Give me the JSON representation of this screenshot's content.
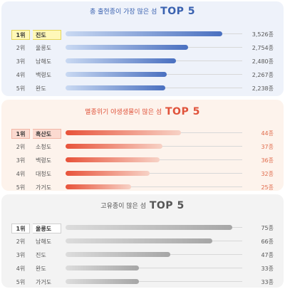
{
  "chart_data": [
    {
      "type": "bar",
      "title_prefix": "총 출현종이 가장 많은 섬",
      "title_emphasis": "TOP 5",
      "ranks": [
        "1위",
        "2위",
        "3위",
        "4위",
        "5위"
      ],
      "categories": [
        "진도",
        "울릉도",
        "남해도",
        "백령도",
        "완도"
      ],
      "values": [
        3526,
        2754,
        2480,
        2267,
        2238
      ],
      "value_labels": [
        "3,526종",
        "2,754종",
        "2,480종",
        "2,267종",
        "2,238종"
      ],
      "xlim": [
        0,
        4000
      ],
      "colors": {
        "bg": "#eef2fa",
        "bar_start": "#c9d9f2",
        "bar_end": "#4a70c0",
        "title": "#3a62b0",
        "value": "#555555",
        "highlight": "#fff8b8",
        "highlight_border": "#e6d65a"
      }
    },
    {
      "type": "bar",
      "title_prefix": "멸종위기 야생생물이 많은 섬",
      "title_emphasis": "TOP 5",
      "ranks": [
        "1위",
        "2위",
        "3위",
        "4위",
        "5위"
      ],
      "categories": [
        "흑산도",
        "소청도",
        "백령도",
        "대청도",
        "가거도"
      ],
      "values": [
        44,
        37,
        36,
        32,
        25
      ],
      "value_labels": [
        "44종",
        "37종",
        "36종",
        "32종",
        "25종"
      ],
      "xlim": [
        0,
        68
      ],
      "colors": {
        "bg": "#fdf3ec",
        "bar_start": "#e8533a",
        "bar_end": "#f7d2c6",
        "title": "#e0533b",
        "value": "#e06a4a",
        "highlight": "#fbdad0",
        "highlight_border": "#f2b7a7"
      }
    },
    {
      "type": "bar",
      "title_prefix": "고유종이 많은 섬",
      "title_emphasis": "TOP 5",
      "ranks": [
        "1위",
        "2위",
        "3위",
        "4위",
        "5위"
      ],
      "categories": [
        "울릉도",
        "남해도",
        "진도",
        "완도",
        "가거도"
      ],
      "values": [
        75,
        66,
        47,
        33,
        33
      ],
      "value_labels": [
        "75종",
        "66종",
        "47종",
        "33종",
        "33종"
      ],
      "xlim": [
        0,
        80
      ],
      "colors": {
        "bg": "#f3f3f3",
        "bar_start": "#dcdcdc",
        "bar_end": "#a6a6a6",
        "title": "#555555",
        "value": "#555555",
        "highlight": "#ffffff",
        "highlight_border": "#cfcfcf"
      }
    }
  ]
}
